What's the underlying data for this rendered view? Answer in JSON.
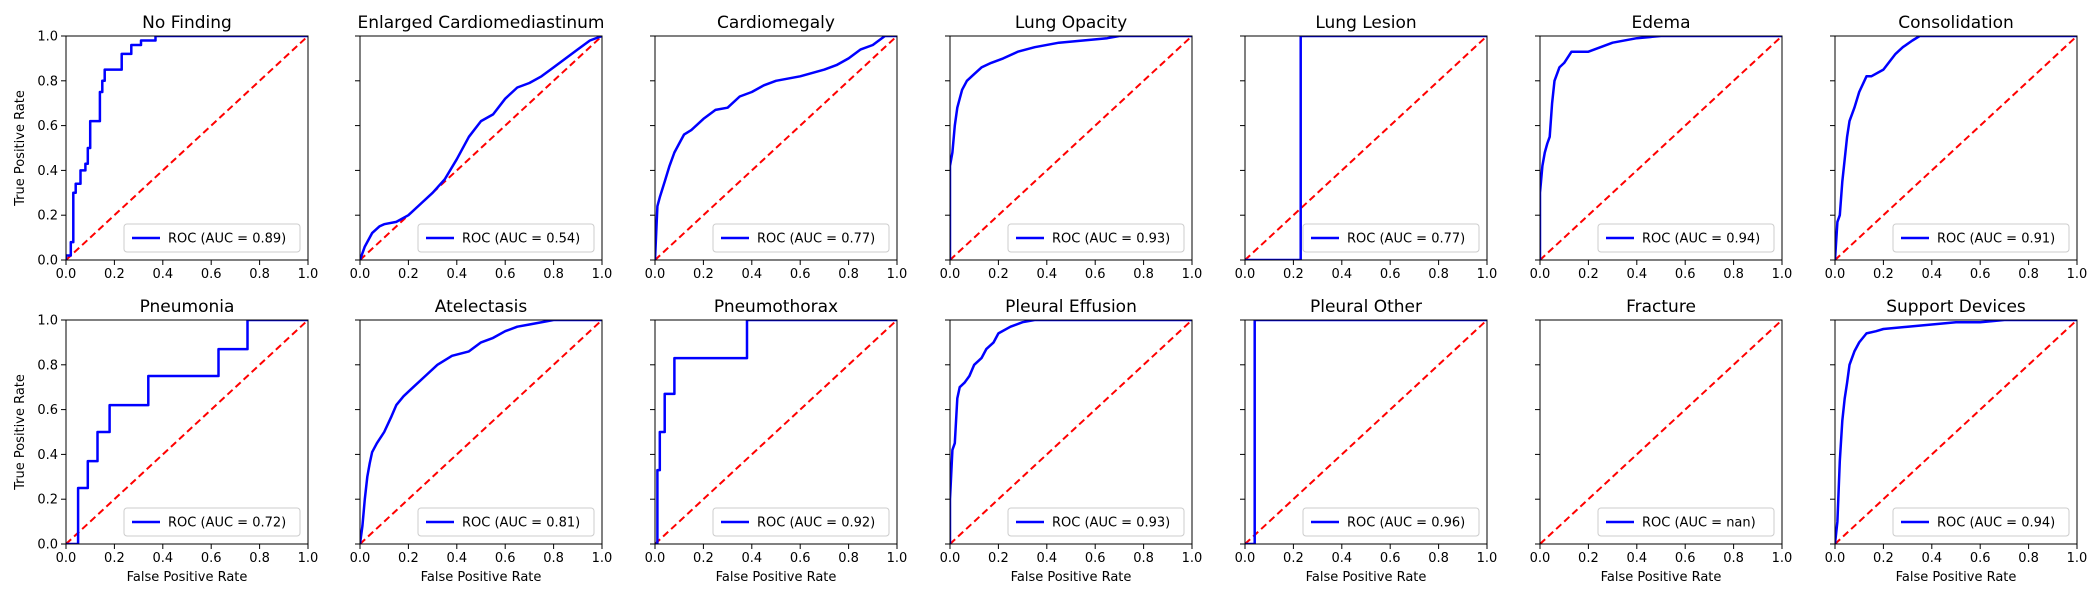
{
  "colors": {
    "roc": "#0000ff",
    "diagonal": "#ff0000"
  },
  "chart_data": [
    {
      "type": "line",
      "title": "No Finding",
      "xlabel": "",
      "ylabel": "True Positive Rate",
      "xlim": [
        0,
        1
      ],
      "ylim": [
        0,
        1
      ],
      "legend": "ROC (AUC = 0.89)",
      "legend_position": "lower-right",
      "series": [
        {
          "name": "ROC (AUC = 0.89)",
          "x": [
            0,
            0,
            0.02,
            0.02,
            0.03,
            0.03,
            0.04,
            0.04,
            0.06,
            0.06,
            0.08,
            0.08,
            0.09,
            0.09,
            0.1,
            0.1,
            0.14,
            0.14,
            0.15,
            0.15,
            0.16,
            0.16,
            0.23,
            0.23,
            0.27,
            0.27,
            0.31,
            0.31,
            0.37,
            0.37,
            1
          ],
          "y": [
            0,
            0.02,
            0.02,
            0.08,
            0.08,
            0.3,
            0.3,
            0.34,
            0.34,
            0.4,
            0.4,
            0.43,
            0.43,
            0.5,
            0.5,
            0.62,
            0.62,
            0.75,
            0.75,
            0.8,
            0.8,
            0.85,
            0.85,
            0.92,
            0.92,
            0.96,
            0.96,
            0.98,
            0.98,
            1,
            1
          ]
        }
      ]
    },
    {
      "type": "line",
      "title": "Enlarged Cardiomediastinum",
      "xlabel": "",
      "ylabel": "",
      "xlim": [
        0,
        1
      ],
      "ylim": [
        0,
        1
      ],
      "legend": "ROC (AUC = 0.54)",
      "legend_position": "lower-right",
      "series": [
        {
          "name": "ROC (AUC = 0.54)",
          "x": [
            0,
            0.01,
            0.02,
            0.05,
            0.08,
            0.1,
            0.15,
            0.2,
            0.25,
            0.3,
            0.35,
            0.4,
            0.45,
            0.5,
            0.55,
            0.6,
            0.65,
            0.7,
            0.75,
            0.8,
            0.85,
            0.9,
            0.95,
            1
          ],
          "y": [
            0,
            0.03,
            0.06,
            0.12,
            0.15,
            0.16,
            0.17,
            0.2,
            0.25,
            0.3,
            0.36,
            0.45,
            0.55,
            0.62,
            0.65,
            0.72,
            0.77,
            0.79,
            0.82,
            0.86,
            0.9,
            0.94,
            0.98,
            1
          ]
        }
      ]
    },
    {
      "type": "line",
      "title": "Cardiomegaly",
      "xlabel": "",
      "ylabel": "",
      "xlim": [
        0,
        1
      ],
      "ylim": [
        0,
        1
      ],
      "legend": "ROC (AUC = 0.77)",
      "legend_position": "lower-right",
      "series": [
        {
          "name": "ROC (AUC = 0.77)",
          "x": [
            0,
            0.01,
            0.02,
            0.04,
            0.06,
            0.08,
            0.1,
            0.12,
            0.15,
            0.2,
            0.25,
            0.3,
            0.35,
            0.4,
            0.45,
            0.5,
            0.6,
            0.7,
            0.75,
            0.8,
            0.85,
            0.9,
            0.95,
            1
          ],
          "y": [
            0,
            0.24,
            0.28,
            0.35,
            0.42,
            0.48,
            0.52,
            0.56,
            0.58,
            0.63,
            0.67,
            0.68,
            0.73,
            0.75,
            0.78,
            0.8,
            0.82,
            0.85,
            0.87,
            0.9,
            0.94,
            0.96,
            1,
            1
          ]
        }
      ]
    },
    {
      "type": "line",
      "title": "Lung Opacity",
      "xlabel": "",
      "ylabel": "",
      "xlim": [
        0,
        1
      ],
      "ylim": [
        0,
        1
      ],
      "legend": "ROC (AUC = 0.93)",
      "legend_position": "lower-right",
      "series": [
        {
          "name": "ROC (AUC = 0.93)",
          "x": [
            0,
            0,
            0.01,
            0.02,
            0.03,
            0.04,
            0.05,
            0.07,
            0.1,
            0.13,
            0.17,
            0.22,
            0.28,
            0.35,
            0.45,
            0.55,
            0.65,
            0.7,
            1
          ],
          "y": [
            0,
            0.42,
            0.48,
            0.6,
            0.68,
            0.72,
            0.76,
            0.8,
            0.83,
            0.86,
            0.88,
            0.9,
            0.93,
            0.95,
            0.97,
            0.98,
            0.99,
            1,
            1
          ]
        }
      ]
    },
    {
      "type": "line",
      "title": "Lung Lesion",
      "xlabel": "",
      "ylabel": "",
      "xlim": [
        0,
        1
      ],
      "ylim": [
        0,
        1
      ],
      "legend": "ROC (AUC = 0.77)",
      "legend_position": "lower-right",
      "series": [
        {
          "name": "ROC (AUC = 0.77)",
          "x": [
            0,
            0.23,
            0.23,
            1
          ],
          "y": [
            0,
            0,
            1,
            1
          ]
        }
      ]
    },
    {
      "type": "line",
      "title": "Edema",
      "xlabel": "",
      "ylabel": "",
      "xlim": [
        0,
        1
      ],
      "ylim": [
        0,
        1
      ],
      "legend": "ROC (AUC = 0.94)",
      "legend_position": "lower-right",
      "series": [
        {
          "name": "ROC (AUC = 0.94)",
          "x": [
            0,
            0,
            0.01,
            0.02,
            0.03,
            0.04,
            0.05,
            0.06,
            0.08,
            0.1,
            0.13,
            0.2,
            0.25,
            0.3,
            0.4,
            0.5,
            1
          ],
          "y": [
            0,
            0.3,
            0.42,
            0.48,
            0.52,
            0.55,
            0.7,
            0.8,
            0.86,
            0.88,
            0.93,
            0.93,
            0.95,
            0.97,
            0.99,
            1,
            1
          ]
        }
      ]
    },
    {
      "type": "line",
      "title": "Consolidation",
      "xlabel": "",
      "ylabel": "",
      "xlim": [
        0,
        1
      ],
      "ylim": [
        0,
        1
      ],
      "legend": "ROC (AUC = 0.91)",
      "legend_position": "lower-right",
      "series": [
        {
          "name": "ROC (AUC = 0.91)",
          "x": [
            0,
            0.01,
            0.02,
            0.03,
            0.04,
            0.05,
            0.06,
            0.08,
            0.1,
            0.13,
            0.15,
            0.2,
            0.25,
            0.28,
            0.32,
            0.35,
            0.4,
            1
          ],
          "y": [
            0,
            0.17,
            0.2,
            0.35,
            0.45,
            0.55,
            0.62,
            0.68,
            0.75,
            0.82,
            0.82,
            0.85,
            0.92,
            0.95,
            0.98,
            1,
            1,
            1
          ]
        }
      ]
    },
    {
      "type": "line",
      "title": "Pneumonia",
      "xlabel": "False Positive Rate",
      "ylabel": "True Positive Rate",
      "xlim": [
        0,
        1
      ],
      "ylim": [
        0,
        1
      ],
      "legend": "ROC (AUC = 0.72)",
      "legend_position": "lower-right",
      "series": [
        {
          "name": "ROC (AUC = 0.72)",
          "x": [
            0,
            0.05,
            0.05,
            0.09,
            0.09,
            0.13,
            0.13,
            0.18,
            0.18,
            0.34,
            0.34,
            0.63,
            0.63,
            0.75,
            0.75,
            1
          ],
          "y": [
            0,
            0,
            0.25,
            0.25,
            0.37,
            0.37,
            0.5,
            0.5,
            0.62,
            0.62,
            0.75,
            0.75,
            0.87,
            0.87,
            1,
            1
          ]
        }
      ]
    },
    {
      "type": "line",
      "title": "Atelectasis",
      "xlabel": "False Positive Rate",
      "ylabel": "",
      "xlim": [
        0,
        1
      ],
      "ylim": [
        0,
        1
      ],
      "legend": "ROC (AUC = 0.81)",
      "legend_position": "lower-right",
      "series": [
        {
          "name": "ROC (AUC = 0.81)",
          "x": [
            0,
            0.01,
            0.02,
            0.03,
            0.04,
            0.05,
            0.07,
            0.1,
            0.13,
            0.15,
            0.18,
            0.22,
            0.27,
            0.32,
            0.38,
            0.45,
            0.5,
            0.55,
            0.6,
            0.65,
            0.7,
            0.8,
            1
          ],
          "y": [
            0,
            0.08,
            0.2,
            0.3,
            0.36,
            0.41,
            0.45,
            0.5,
            0.57,
            0.62,
            0.66,
            0.7,
            0.75,
            0.8,
            0.84,
            0.86,
            0.9,
            0.92,
            0.95,
            0.97,
            0.98,
            1,
            1
          ]
        }
      ]
    },
    {
      "type": "line",
      "title": "Pneumothorax",
      "xlabel": "False Positive Rate",
      "ylabel": "",
      "xlim": [
        0,
        1
      ],
      "ylim": [
        0,
        1
      ],
      "legend": "ROC (AUC = 0.92)",
      "legend_position": "lower-right",
      "series": [
        {
          "name": "ROC (AUC = 0.92)",
          "x": [
            0,
            0.01,
            0.01,
            0.02,
            0.02,
            0.04,
            0.04,
            0.08,
            0.08,
            0.38,
            0.38,
            1
          ],
          "y": [
            0,
            0,
            0.33,
            0.33,
            0.5,
            0.5,
            0.67,
            0.67,
            0.83,
            0.83,
            1,
            1
          ]
        }
      ]
    },
    {
      "type": "line",
      "title": "Pleural Effusion",
      "xlabel": "False Positive Rate",
      "ylabel": "",
      "xlim": [
        0,
        1
      ],
      "ylim": [
        0,
        1
      ],
      "legend": "ROC (AUC = 0.93)",
      "legend_position": "lower-right",
      "series": [
        {
          "name": "ROC (AUC = 0.93)",
          "x": [
            0,
            0,
            0.01,
            0.02,
            0.03,
            0.04,
            0.06,
            0.08,
            0.1,
            0.13,
            0.15,
            0.18,
            0.2,
            0.25,
            0.3,
            0.35,
            0.5,
            1
          ],
          "y": [
            0,
            0.2,
            0.42,
            0.45,
            0.65,
            0.7,
            0.72,
            0.75,
            0.8,
            0.83,
            0.87,
            0.9,
            0.94,
            0.97,
            0.99,
            1,
            1,
            1
          ]
        }
      ]
    },
    {
      "type": "line",
      "title": "Pleural Other",
      "xlabel": "False Positive Rate",
      "ylabel": "",
      "xlim": [
        0,
        1
      ],
      "ylim": [
        0,
        1
      ],
      "legend": "ROC (AUC = 0.96)",
      "legend_position": "lower-right",
      "series": [
        {
          "name": "ROC (AUC = 0.96)",
          "x": [
            0,
            0.04,
            0.04,
            1
          ],
          "y": [
            0,
            0,
            1,
            1
          ]
        }
      ]
    },
    {
      "type": "line",
      "title": "Fracture",
      "xlabel": "False Positive Rate",
      "ylabel": "",
      "xlim": [
        0,
        1
      ],
      "ylim": [
        0,
        1
      ],
      "legend": "ROC (AUC = nan)",
      "legend_position": "lower-right",
      "series": [
        {
          "name": "ROC (AUC = nan)",
          "x": [],
          "y": []
        }
      ]
    },
    {
      "type": "line",
      "title": "Support Devices",
      "xlabel": "False Positive Rate",
      "ylabel": "",
      "xlim": [
        0,
        1
      ],
      "ylim": [
        0,
        1
      ],
      "legend": "ROC (AUC = 0.94)",
      "legend_position": "lower-right",
      "series": [
        {
          "name": "ROC (AUC = 0.94)",
          "x": [
            0,
            0.01,
            0.02,
            0.03,
            0.04,
            0.05,
            0.06,
            0.08,
            0.1,
            0.13,
            0.17,
            0.2,
            0.3,
            0.4,
            0.5,
            0.6,
            0.7,
            0.8,
            1
          ],
          "y": [
            0,
            0.1,
            0.37,
            0.55,
            0.65,
            0.72,
            0.8,
            0.86,
            0.9,
            0.94,
            0.95,
            0.96,
            0.97,
            0.98,
            0.99,
            0.99,
            1,
            1,
            1
          ]
        }
      ]
    }
  ],
  "ticks": [
    "0.0",
    "0.2",
    "0.4",
    "0.6",
    "0.8",
    "1.0"
  ]
}
